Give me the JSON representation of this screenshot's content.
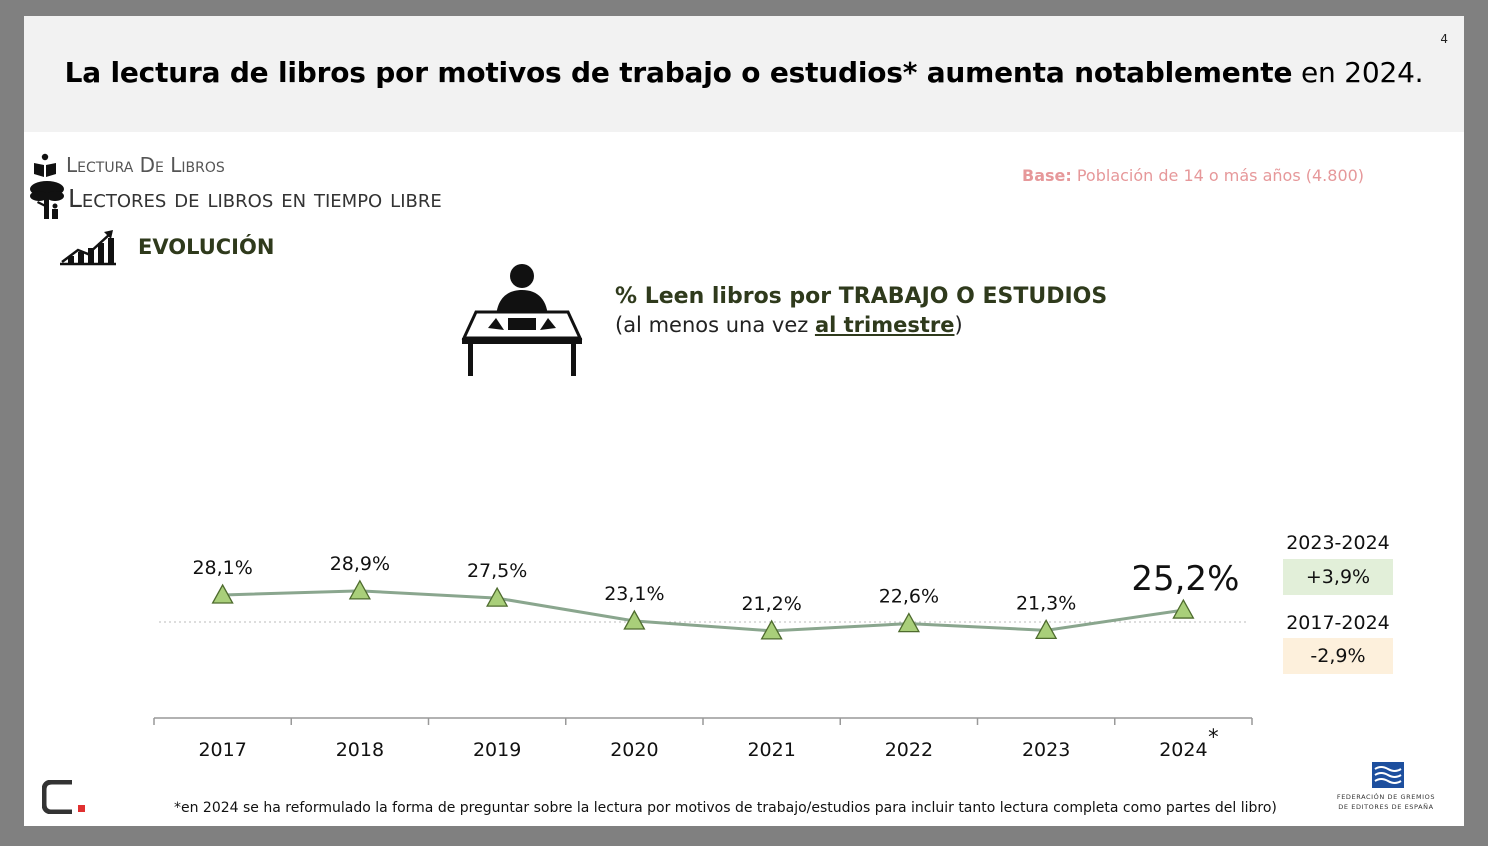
{
  "header": {
    "page_number": "4",
    "title_bold": "La lectura de libros por motivos de trabajo o estudios* aumenta notablemente",
    "title_normal": " en 2024."
  },
  "section": {
    "line1": "Lectura De Libros",
    "line2": "Lectores de libros en tiempo libre",
    "subsection": "EVOLUCIÓN",
    "icons": [
      "book-reader-icon",
      "tree-reader-icon",
      "growth-chart-icon",
      "desk-person-icon"
    ]
  },
  "base": {
    "label": "Base:",
    "text": " Población de 14 o más años (4.800)"
  },
  "metric": {
    "title": "% Leen libros por TRABAJO O ESTUDIOS",
    "sub_before": "(al menos una vez ",
    "sub_emph": "al trimestre",
    "sub_after": ")"
  },
  "chart_data": {
    "type": "line",
    "categories": [
      "2017",
      "2018",
      "2019",
      "2020",
      "2021",
      "2022",
      "2023",
      "2024"
    ],
    "values": [
      28.1,
      28.9,
      27.5,
      23.1,
      21.2,
      22.6,
      21.3,
      25.2
    ],
    "data_labels": [
      "28,1%",
      "28,9%",
      "27,5%",
      "23,1%",
      "21,2%",
      "22,6%",
      "21,3%",
      "25,2%"
    ],
    "last_category_marker": "*",
    "marker": "triangle",
    "reference_line": "dashed",
    "colors": {
      "line": "#8aa68e",
      "marker_fill": "#a9cf7a",
      "marker_stroke": "#4e6b2e"
    }
  },
  "changes": [
    {
      "period": "2023-2024",
      "value": "+3,9%",
      "color": "#e2efd9"
    },
    {
      "period": "2017-2024",
      "value": "-2,9%",
      "color": "#fdf0dc"
    }
  ],
  "footnote": "*en 2024 se ha reformulado la forma de preguntar sobre la lectura por motivos de trabajo/estudios para incluir tanto lectura completa como partes del libro)",
  "footer": {
    "org_line1": "FEDERACIÓN DE GREMIOS",
    "org_line2": "DE EDITORES DE ESPAÑA"
  }
}
